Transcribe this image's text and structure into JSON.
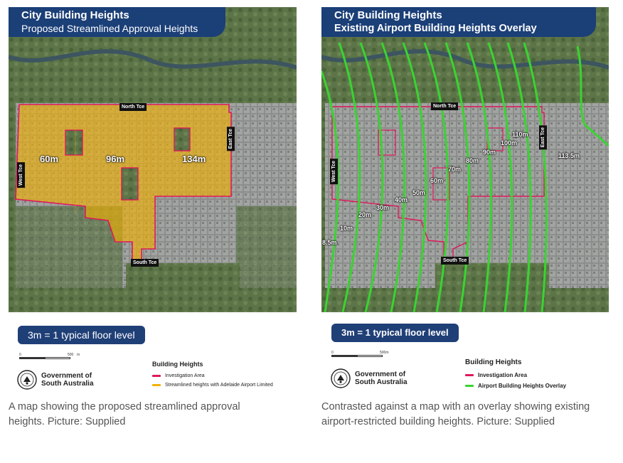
{
  "left": {
    "title": "City Building Heights",
    "subtitle": "Proposed Streamlined Approval Heights",
    "streets": {
      "north": "North Tce",
      "south": "South Tce",
      "east": "East Tce",
      "west": "West Tce"
    },
    "height_labels": [
      "60m",
      "96m",
      "134m"
    ],
    "floor_note": "3m = 1 typical floor level",
    "scale": {
      "start": "0",
      "end": "500",
      "unit": "m"
    },
    "gov_line1": "Government of",
    "gov_line2": "South Australia",
    "legend": {
      "title": "Building Heights",
      "items": [
        {
          "label": "Investigation Area",
          "color": "#e0185a"
        },
        {
          "label": "Streamlined heights with Adelaide Airport Limited",
          "color": "#f2b100"
        }
      ]
    },
    "caption": "A map showing the proposed streamlined approval heights. Picture: Supplied"
  },
  "right": {
    "title": "City Building Heights",
    "subtitle": "Existing Airport Building Heights Overlay",
    "streets": {
      "north": "North Tce",
      "south": "South Tce",
      "east": "East Tce",
      "west": "West Tce"
    },
    "overlay_labels": [
      "8.5m",
      "10m",
      "20m",
      "30m",
      "40m",
      "50m",
      "60m",
      "70m",
      "80m",
      "90m",
      "100m",
      "110m",
      "113.5m"
    ],
    "floor_note": "3m = 1 typical floor level",
    "scale": {
      "start": "0",
      "end": "500m"
    },
    "gov_line1": "Government of",
    "gov_line2": "South Australia",
    "legend": {
      "title": "Building Heights",
      "items": [
        {
          "label": "Investigation Area",
          "color": "#e0185a"
        },
        {
          "label": "Airport Building Heights Overlay",
          "color": "#39d431"
        }
      ]
    },
    "caption": "Contrasted against a map with an overlay showing existing airport-restricted building heights. Picture: Supplied"
  },
  "colors": {
    "banner": "#1b3f77",
    "investigation": "#e0185a",
    "streamlined": "#f2b100",
    "overlay": "#39d431",
    "parkland": "#5f7a4a",
    "city": "#8f9290"
  }
}
